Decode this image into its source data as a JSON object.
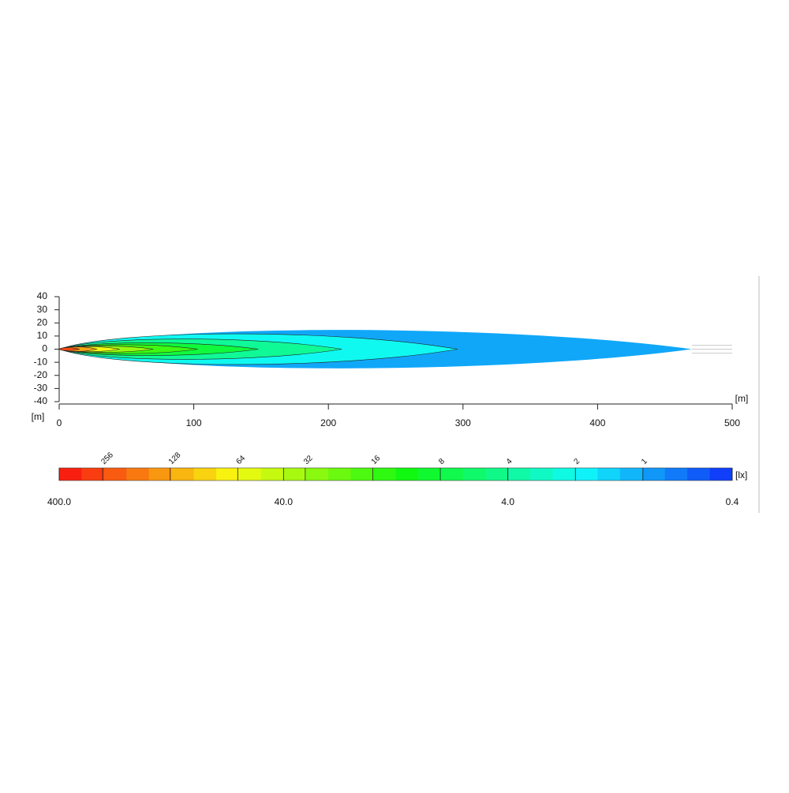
{
  "chart_data": {
    "type": "isolux",
    "x_label": "[m]",
    "y_label": "[m]",
    "xlim": [
      0,
      500
    ],
    "ylim": [
      -40,
      40
    ],
    "xticks": [
      0,
      100,
      200,
      300,
      400,
      500
    ],
    "yticks": [
      40,
      30,
      20,
      10,
      0,
      -10,
      -20,
      -30,
      -40
    ],
    "colorbar": {
      "unit": "[lx]",
      "log": true,
      "lim": [
        400,
        0.4
      ],
      "ticks": [
        {
          "value": 400,
          "label": "400.0"
        },
        {
          "value": 40,
          "label": "40.0"
        },
        {
          "value": 4,
          "label": "4.0"
        },
        {
          "value": 0.4,
          "label": "0.4"
        }
      ]
    },
    "contours": {
      "levels": [
        1,
        2,
        4,
        8,
        16,
        32,
        64,
        128,
        256
      ],
      "reach": [
        470,
        296,
        210,
        148,
        103,
        70,
        45,
        28,
        15
      ],
      "half_width": [
        15,
        12,
        8,
        5,
        3.5,
        2.5,
        2,
        1.8,
        1.2
      ]
    }
  }
}
